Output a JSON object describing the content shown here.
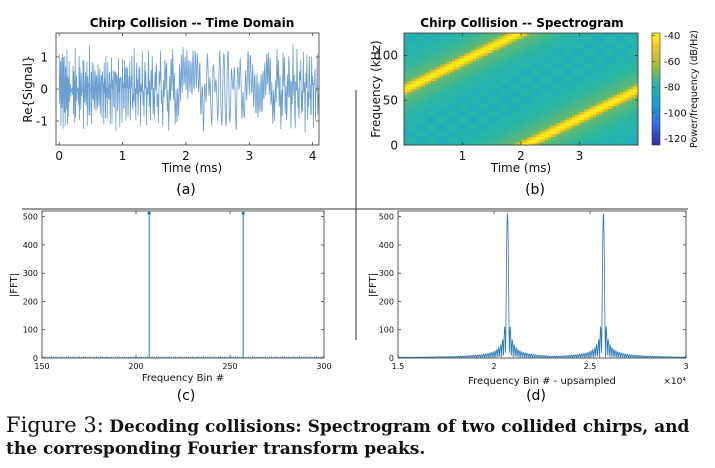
{
  "caption": {
    "label": "Figure 3:",
    "text": "Decoding collisions: Spectrogram of two collided chirps, and the corresponding Fourier transform peaks."
  },
  "chart_data": [
    {
      "id": "a",
      "type": "line",
      "title": "Chirp Collision -- Time Domain",
      "panel_label": "(a)",
      "xlabel": "Time (ms)",
      "ylabel": "Re{Signal}",
      "xlim": [
        -0.05,
        4.1
      ],
      "ylim": [
        -1.75,
        1.75
      ],
      "xticks": [
        0,
        1,
        2,
        3,
        4
      ],
      "xtick_labels": [
        "0",
        "1",
        "2",
        "3",
        "4"
      ],
      "yticks": [
        -1,
        0,
        1
      ],
      "ytick_labels": [
        "-1",
        "0",
        "1"
      ],
      "color": "#6a9ed0",
      "series": [
        {
          "description_note": "",
          "x_range": [
            0,
            4.1
          ],
          "samples": 600
        }
      ]
    },
    {
      "id": "b",
      "type": "heatmap",
      "title": "Chirp Collision -- Spectrogram",
      "panel_label": "(b)",
      "xlabel": "Time (ms)",
      "ylabel": "Frequency (kHz)",
      "xlim": [
        0,
        4
      ],
      "ylim": [
        0,
        125
      ],
      "xticks": [
        1,
        2,
        3
      ],
      "xtick_labels": [
        "1",
        "2",
        "3"
      ],
      "yticks": [
        0,
        50,
        100
      ],
      "ytick_labels": [
        "0",
        "50",
        "100"
      ],
      "colorbar": {
        "label": "Power/frequency (dB/Hz)",
        "ticks": [
          -40,
          -60,
          -80,
          -100,
          -120
        ],
        "tick_labels": [
          "-40",
          "-60",
          "-80",
          "-100",
          "-120"
        ],
        "range": [
          -125,
          -38
        ]
      },
      "chirps": [
        {
          "start_freq_khz": 62,
          "slope_khz_per_ms": 32
        },
        {
          "start_freq_khz": -66,
          "slope_khz_per_ms": 32
        }
      ]
    },
    {
      "id": "c",
      "type": "line",
      "panel_label": "(c)",
      "xlabel": "Frequency Bin #",
      "ylabel": "|FFT|",
      "xlim": [
        150,
        300
      ],
      "ylim": [
        0,
        520
      ],
      "xticks": [
        150,
        200,
        250,
        300
      ],
      "xtick_labels": [
        "150",
        "200",
        "250",
        "300"
      ],
      "yticks": [
        0,
        100,
        200,
        300,
        400,
        500
      ],
      "ytick_labels": [
        "0",
        "100",
        "200",
        "300",
        "400",
        "500"
      ],
      "peaks": [
        {
          "x": 207,
          "y": 512
        },
        {
          "x": 257,
          "y": 512
        }
      ],
      "baseline": 4
    },
    {
      "id": "d",
      "type": "line",
      "panel_label": "(d)",
      "xlabel": "Frequency Bin # - upsampled",
      "ylabel": "|FFT|",
      "xlim": [
        15000,
        30000
      ],
      "ylim": [
        0,
        520
      ],
      "xticks": [
        15000,
        20000,
        25000,
        30000
      ],
      "xtick_labels": [
        "1.5",
        "2",
        "2.5",
        "3"
      ],
      "x_multiplier": "×10⁴",
      "yticks": [
        0,
        100,
        200,
        300,
        400,
        500
      ],
      "ytick_labels": [
        "0",
        "100",
        "200",
        "300",
        "400",
        "500"
      ],
      "peaks": [
        {
          "x": 20700,
          "y": 512
        },
        {
          "x": 25700,
          "y": 512
        }
      ]
    }
  ]
}
